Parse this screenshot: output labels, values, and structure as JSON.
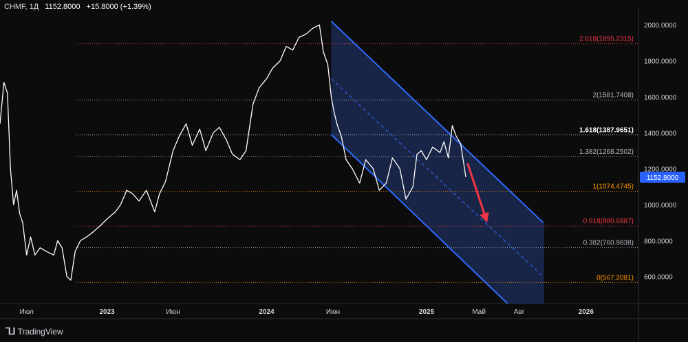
{
  "header": {
    "symbol": "CHMF, 1Д",
    "last": "1152.8000",
    "change": "+15.8000 (+1.39%)"
  },
  "brand": {
    "logo": "⅂⅃",
    "name": "TradingView"
  },
  "colors": {
    "background": "#0c0c0c",
    "price_line": "#ffffff",
    "channel_fill": "#1c2a52",
    "channel_line": "#2f6bff",
    "arrow": "#f23645",
    "price_label_bg": "#2962ff",
    "fib_red": "#f23645",
    "fib_gray": "#b2b5be",
    "fib_orange": "#ff9800",
    "fib_white": "#ffffff"
  },
  "chart_data": {
    "type": "line",
    "title": "",
    "xlabel": "",
    "ylabel": "",
    "ylim": [
      450,
      2100
    ],
    "xlim": [
      "2022-05-01",
      "2026-05-01"
    ],
    "y_ticks": [
      "2000.0000",
      "1800.0000",
      "1600.0000",
      "1400.0000",
      "1200.0000",
      "1000.0000",
      "800.0000",
      "600.0000"
    ],
    "x_ticks": [
      {
        "date": "2022-07-01",
        "label": "Июл"
      },
      {
        "date": "2023-01-01",
        "label": "2023"
      },
      {
        "date": "2023-06-01",
        "label": "Июн"
      },
      {
        "date": "2024-01-01",
        "label": "2024"
      },
      {
        "date": "2024-06-01",
        "label": "Июн"
      },
      {
        "date": "2025-01-01",
        "label": "2025"
      },
      {
        "date": "2025-05-01",
        "label": "Май"
      },
      {
        "date": "2025-08-01",
        "label": "Авг"
      },
      {
        "date": "2026-01-01",
        "label": "2026"
      }
    ],
    "series": [
      {
        "x": [
          "2022-05-01",
          "2022-05-10",
          "2022-05-18",
          "2022-05-25",
          "2022-06-01",
          "2022-06-08",
          "2022-06-15",
          "2022-06-22",
          "2022-07-01",
          "2022-07-10",
          "2022-07-20",
          "2022-08-01",
          "2022-08-15",
          "2022-09-01",
          "2022-09-10",
          "2022-09-20",
          "2022-10-01",
          "2022-10-10",
          "2022-10-20",
          "2022-11-01",
          "2022-11-15",
          "2022-12-01",
          "2022-12-15",
          "2023-01-01",
          "2023-01-20",
          "2023-02-01",
          "2023-02-15",
          "2023-03-01",
          "2023-03-15",
          "2023-04-01",
          "2023-04-20",
          "2023-05-01",
          "2023-05-15",
          "2023-06-01",
          "2023-06-15",
          "2023-07-01",
          "2023-07-15",
          "2023-08-01",
          "2023-08-15",
          "2023-09-01",
          "2023-09-15",
          "2023-10-01",
          "2023-10-15",
          "2023-11-01",
          "2023-11-15",
          "2023-12-01",
          "2023-12-15",
          "2024-01-01",
          "2024-01-15",
          "2024-02-01",
          "2024-02-15",
          "2024-03-01",
          "2024-03-15",
          "2024-04-01",
          "2024-04-15",
          "2024-05-01",
          "2024-05-10",
          "2024-05-20",
          "2024-05-28",
          "2024-06-03",
          "2024-06-10",
          "2024-06-20",
          "2024-07-01",
          "2024-07-15",
          "2024-08-01",
          "2024-08-15",
          "2024-09-01",
          "2024-09-15",
          "2024-10-01",
          "2024-10-15",
          "2024-11-01",
          "2024-11-15",
          "2024-12-01",
          "2024-12-10",
          "2024-12-20",
          "2025-01-01",
          "2025-01-15",
          "2025-02-01",
          "2025-02-10",
          "2025-02-20",
          "2025-03-01",
          "2025-03-10",
          "2025-03-20",
          "2025-04-01"
        ],
        "y": [
          1450,
          1680,
          1620,
          1200,
          1000,
          1080,
          950,
          900,
          720,
          820,
          720,
          760,
          740,
          720,
          800,
          760,
          600,
          580,
          740,
          800,
          820,
          850,
          880,
          920,
          960,
          1000,
          1080,
          1060,
          1020,
          1080,
          960,
          1060,
          1130,
          1300,
          1380,
          1450,
          1330,
          1420,
          1300,
          1400,
          1430,
          1360,
          1280,
          1250,
          1300,
          1560,
          1650,
          1700,
          1760,
          1800,
          1880,
          1860,
          1930,
          1950,
          1980,
          2000,
          1850,
          1780,
          1600,
          1520,
          1450,
          1380,
          1250,
          1200,
          1120,
          1250,
          1200,
          1080,
          1120,
          1260,
          1200,
          1030,
          1100,
          1280,
          1300,
          1250,
          1320,
          1290,
          1350,
          1260,
          1440,
          1380,
          1340,
          1152.8
        ]
      }
    ],
    "fibonacci": [
      {
        "label": "2.618(1895.2315)",
        "value": 1895.2315,
        "color": "#f23645"
      },
      {
        "label": "2(1581.7408)",
        "value": 1581.7408,
        "color": "#b2b5be"
      },
      {
        "label": "1.618(1387.9651)",
        "value": 1387.9651,
        "color": "#ffffff"
      },
      {
        "label": "1.382(1268.2502)",
        "value": 1268.2502,
        "color": "#b2b5be"
      },
      {
        "label": "1(1074.4745)",
        "value": 1074.4745,
        "color": "#ff9800"
      },
      {
        "label": "0.618(880.6987)",
        "value": 880.6987,
        "color": "#f23645"
      },
      {
        "label": "0.382(760.9838)",
        "value": 760.9838,
        "color": "#b2b5be"
      },
      {
        "label": "0(567.2081)",
        "value": 567.2081,
        "color": "#ff9800"
      }
    ],
    "channel": {
      "upper": [
        [
          "2024-05-28",
          2020
        ],
        [
          "2025-09-25",
          900
        ]
      ],
      "middle": [
        [
          "2024-05-28",
          1700
        ],
        [
          "2025-09-25",
          600
        ]
      ],
      "lower": [
        [
          "2024-05-28",
          1390
        ],
        [
          "2025-09-25",
          260
        ]
      ]
    },
    "arrow": {
      "from": [
        "2025-04-05",
        1230
      ],
      "to": [
        "2025-05-20",
        900
      ]
    },
    "price_label": "1152.8000",
    "grid": false,
    "legend": "none"
  }
}
